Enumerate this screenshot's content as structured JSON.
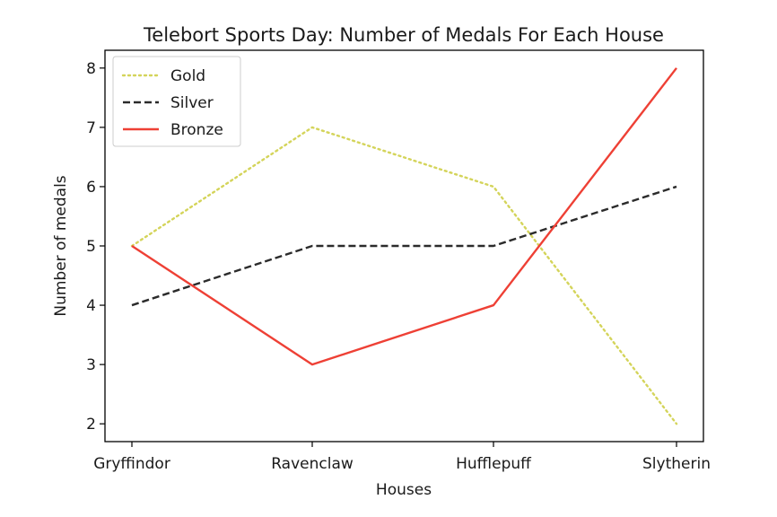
{
  "chart_data": {
    "type": "line",
    "title": "Telebort Sports Day: Number of Medals For Each House",
    "xlabel": "Houses",
    "ylabel": "Number of medals",
    "categories": [
      "Gryffindor",
      "Ravenclaw",
      "Hufflepuff",
      "Slytherin"
    ],
    "ylim": [
      1.7,
      8.3
    ],
    "yticks": [
      2,
      3,
      4,
      5,
      6,
      7,
      8
    ],
    "grid": false,
    "legend_position": "top-left",
    "series": [
      {
        "name": "Gold",
        "values": [
          5,
          7,
          6,
          2
        ],
        "color": "#d4d45a",
        "style": "dotted"
      },
      {
        "name": "Silver",
        "values": [
          4,
          5,
          5,
          6
        ],
        "color": "#2b2b2b",
        "style": "dashed"
      },
      {
        "name": "Bronze",
        "values": [
          5,
          3,
          4,
          8
        ],
        "color": "#ee4035",
        "style": "solid"
      }
    ]
  }
}
